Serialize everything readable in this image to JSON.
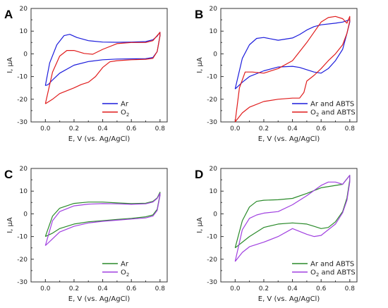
{
  "figure": {
    "panels": [
      "A",
      "B",
      "C",
      "D"
    ]
  },
  "colors": {
    "ar": "#1c1cdc",
    "o2_red": "#e01c1c",
    "green": "#2a8a2a",
    "purple": "#a040e0"
  },
  "chart_data": [
    {
      "panel": "A",
      "type": "line",
      "xlabel": "E, V (vs. Ag/AgCl)",
      "ylabel": "I, µA",
      "xlim": [
        -0.1,
        0.85
      ],
      "ylim": [
        -30,
        20
      ],
      "xticks": [
        "0.0",
        "0.2",
        "0.4",
        "0.6",
        "0.8"
      ],
      "yticks": [
        "-30",
        "-20",
        "-10",
        "0",
        "10",
        "20"
      ],
      "legend": "bottom-right",
      "series": [
        {
          "name": "Ar",
          "color_key": "ar",
          "x": [
            0.0,
            0.03,
            0.08,
            0.13,
            0.17,
            0.22,
            0.3,
            0.4,
            0.5,
            0.6,
            0.7,
            0.75,
            0.78,
            0.8,
            0.8,
            0.78,
            0.75,
            0.7,
            0.6,
            0.5,
            0.4,
            0.3,
            0.2,
            0.1,
            0.05,
            0.02,
            0.0
          ],
          "y": [
            -14,
            -4,
            4,
            8,
            8.6,
            7.2,
            5.8,
            5.2,
            5.1,
            5.2,
            5.4,
            6.2,
            7.8,
            9.5,
            8.0,
            1.0,
            -1.6,
            -2.1,
            -2.2,
            -2.3,
            -2.6,
            -3.4,
            -5.0,
            -8.5,
            -11.5,
            -13.5,
            -14
          ]
        },
        {
          "name": "O2",
          "color_key": "o2_red",
          "x": [
            0.0,
            0.05,
            0.1,
            0.15,
            0.2,
            0.27,
            0.33,
            0.4,
            0.5,
            0.6,
            0.7,
            0.75,
            0.8,
            0.8,
            0.78,
            0.75,
            0.7,
            0.6,
            0.5,
            0.45,
            0.4,
            0.35,
            0.3,
            0.25,
            0.2,
            0.1,
            0.05,
            0.0
          ],
          "y": [
            -22,
            -8,
            -1,
            1.5,
            1.5,
            0.2,
            -0.2,
            2.0,
            4.5,
            5.0,
            5.0,
            5.8,
            9.5,
            8.0,
            1.0,
            -2.0,
            -2.4,
            -2.6,
            -3.0,
            -3.5,
            -6.0,
            -10.0,
            -12.5,
            -13.5,
            -15.0,
            -17.5,
            -20.0,
            -22
          ]
        }
      ]
    },
    {
      "panel": "B",
      "type": "line",
      "xlabel": "E, V (vs. Ag/AgCl)",
      "ylabel": "I, µA",
      "xlim": [
        -0.1,
        0.85
      ],
      "ylim": [
        -30,
        20
      ],
      "xticks": [
        "0.0",
        "0.2",
        "0.4",
        "0.6",
        "0.8"
      ],
      "yticks": [
        "-30",
        "-20",
        "-10",
        "0",
        "10",
        "20"
      ],
      "legend": "bottom-right",
      "series": [
        {
          "name": "Ar and ABTS",
          "color_key": "ar",
          "x": [
            0.0,
            0.05,
            0.1,
            0.15,
            0.2,
            0.3,
            0.4,
            0.45,
            0.5,
            0.55,
            0.6,
            0.7,
            0.75,
            0.8,
            0.8,
            0.78,
            0.75,
            0.7,
            0.65,
            0.6,
            0.55,
            0.5,
            0.45,
            0.4,
            0.3,
            0.2,
            0.1,
            0.05,
            0.0
          ],
          "y": [
            -15.5,
            -2,
            4,
            6.8,
            7.2,
            6.0,
            7.0,
            8.5,
            10.5,
            12.0,
            12.8,
            13.5,
            14.0,
            15.0,
            14.0,
            9.0,
            2.0,
            -3.0,
            -6.5,
            -8.5,
            -8.0,
            -7.0,
            -6.0,
            -5.5,
            -5.8,
            -7.5,
            -10.0,
            -12.5,
            -15.5
          ]
        },
        {
          "name": "O2 and ABTS",
          "color_key": "o2_red",
          "x": [
            0.0,
            0.03,
            0.07,
            0.12,
            0.2,
            0.3,
            0.4,
            0.5,
            0.6,
            0.65,
            0.7,
            0.75,
            0.78,
            0.8,
            0.8,
            0.78,
            0.75,
            0.7,
            0.65,
            0.6,
            0.55,
            0.5,
            0.48,
            0.45,
            0.4,
            0.3,
            0.2,
            0.1,
            0.05,
            0.0
          ],
          "y": [
            -30,
            -15,
            -8,
            -8.0,
            -8.5,
            -6.5,
            -3.0,
            5.0,
            14.0,
            16.0,
            16.5,
            15.5,
            13.5,
            16.5,
            14.5,
            9.0,
            4.0,
            0.0,
            -3.0,
            -6.5,
            -9.5,
            -12.0,
            -17.0,
            -19.5,
            -19.5,
            -20.0,
            -21.0,
            -23.5,
            -26.0,
            -30
          ]
        }
      ]
    },
    {
      "panel": "C",
      "type": "line",
      "xlabel": "E, V (vs. Ag/AgCl)",
      "ylabel": "I, µA",
      "xlim": [
        -0.1,
        0.85
      ],
      "ylim": [
        -30,
        20
      ],
      "xticks": [
        "0.0",
        "0.2",
        "0.4",
        "0.6",
        "0.8"
      ],
      "yticks": [
        "-30",
        "-20",
        "-10",
        "0",
        "10",
        "20"
      ],
      "legend": "bottom-right",
      "series": [
        {
          "name": "Ar",
          "color_key": "green",
          "x": [
            0.0,
            0.05,
            0.1,
            0.2,
            0.3,
            0.4,
            0.5,
            0.6,
            0.7,
            0.75,
            0.78,
            0.8,
            0.8,
            0.78,
            0.75,
            0.7,
            0.6,
            0.5,
            0.4,
            0.3,
            0.2,
            0.1,
            0.05,
            0.0
          ],
          "y": [
            -10,
            -1,
            2.5,
            4.6,
            5.2,
            5.2,
            4.8,
            4.5,
            4.7,
            5.5,
            7.0,
            9.5,
            8.5,
            2.0,
            -0.5,
            -1.3,
            -2.0,
            -2.5,
            -3.0,
            -3.5,
            -4.5,
            -6.5,
            -8.5,
            -10
          ]
        },
        {
          "name": "O2",
          "color_key": "purple",
          "x": [
            0.0,
            0.05,
            0.1,
            0.2,
            0.3,
            0.4,
            0.5,
            0.6,
            0.7,
            0.75,
            0.78,
            0.8,
            0.8,
            0.78,
            0.75,
            0.7,
            0.6,
            0.5,
            0.4,
            0.3,
            0.2,
            0.1,
            0.05,
            0.0
          ],
          "y": [
            -14,
            -3,
            1.0,
            3.5,
            4.3,
            4.5,
            4.4,
            4.2,
            4.4,
            5.2,
            6.8,
            9.0,
            8.0,
            1.5,
            -1.0,
            -1.8,
            -2.3,
            -2.8,
            -3.3,
            -4.0,
            -5.5,
            -8.0,
            -11.0,
            -14
          ]
        }
      ]
    },
    {
      "panel": "D",
      "type": "line",
      "xlabel": "E, V (vs. Ag/AgCl)",
      "ylabel": "I, µA",
      "xlim": [
        -0.1,
        0.85
      ],
      "ylim": [
        -30,
        20
      ],
      "xticks": [
        "0.0",
        "0.2",
        "0.4",
        "0.6",
        "0.8"
      ],
      "yticks": [
        "-30",
        "-20",
        "-10",
        "0",
        "10",
        "20"
      ],
      "legend": "bottom-right",
      "series": [
        {
          "name": "Ar and ABTS",
          "color_key": "green",
          "x": [
            0.0,
            0.05,
            0.1,
            0.15,
            0.2,
            0.3,
            0.4,
            0.5,
            0.6,
            0.7,
            0.75,
            0.8,
            0.8,
            0.78,
            0.75,
            0.7,
            0.65,
            0.6,
            0.55,
            0.5,
            0.4,
            0.3,
            0.2,
            0.1,
            0.05,
            0.0
          ],
          "y": [
            -15,
            -3,
            3,
            5.5,
            6.0,
            6.2,
            6.8,
            9.0,
            11.5,
            12.5,
            13.0,
            17.0,
            15.0,
            7.0,
            1.0,
            -3.5,
            -6.0,
            -6.5,
            -5.5,
            -4.5,
            -4.0,
            -4.5,
            -6.0,
            -10.0,
            -12.5,
            -15
          ]
        },
        {
          "name": "O2 and ABTS",
          "color_key": "purple",
          "x": [
            0.0,
            0.05,
            0.1,
            0.15,
            0.2,
            0.3,
            0.4,
            0.5,
            0.6,
            0.65,
            0.7,
            0.75,
            0.8,
            0.8,
            0.78,
            0.75,
            0.7,
            0.65,
            0.6,
            0.55,
            0.5,
            0.4,
            0.3,
            0.2,
            0.1,
            0.05,
            0.0
          ],
          "y": [
            -21,
            -7,
            -2,
            -0.5,
            0.3,
            1.0,
            4.0,
            8.0,
            12.5,
            14.0,
            14.0,
            13.0,
            17.0,
            14.0,
            6.0,
            0.5,
            -4.5,
            -7.0,
            -9.5,
            -10.0,
            -9.0,
            -6.5,
            -10.0,
            -12.5,
            -14.5,
            -17.0,
            -21
          ]
        }
      ]
    }
  ]
}
